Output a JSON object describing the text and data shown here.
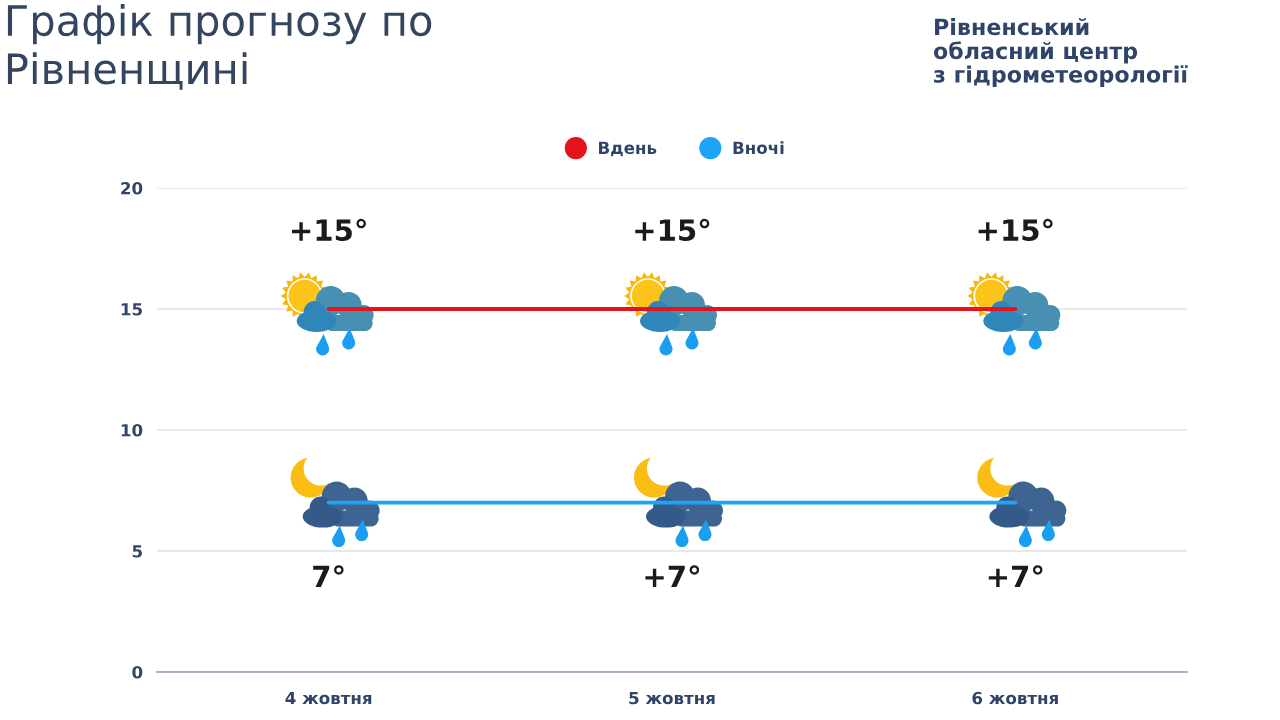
{
  "chart_data": {
    "type": "line",
    "title": "Графік прогнозу по\nРівненщині",
    "annotations": [
      "Рівненський\nобласний центр\nз гідрометеорології"
    ],
    "categories": [
      "4 жовтня",
      "5 жовтня",
      "6 жовтня"
    ],
    "series": [
      {
        "name": "Вдень",
        "color": "#e3141d",
        "values": [
          15,
          15,
          15
        ],
        "value_labels": [
          "+15°",
          "+15°",
          "+15°"
        ]
      },
      {
        "name": "Вночі",
        "color": "#1da5f5",
        "values": [
          7,
          7,
          7
        ],
        "value_labels": [
          "7°",
          "+7°",
          "+7°"
        ]
      }
    ],
    "ylim": [
      0,
      20
    ],
    "yticks": [
      0,
      5,
      10,
      15,
      20
    ],
    "grid": "y",
    "legend": "top"
  }
}
